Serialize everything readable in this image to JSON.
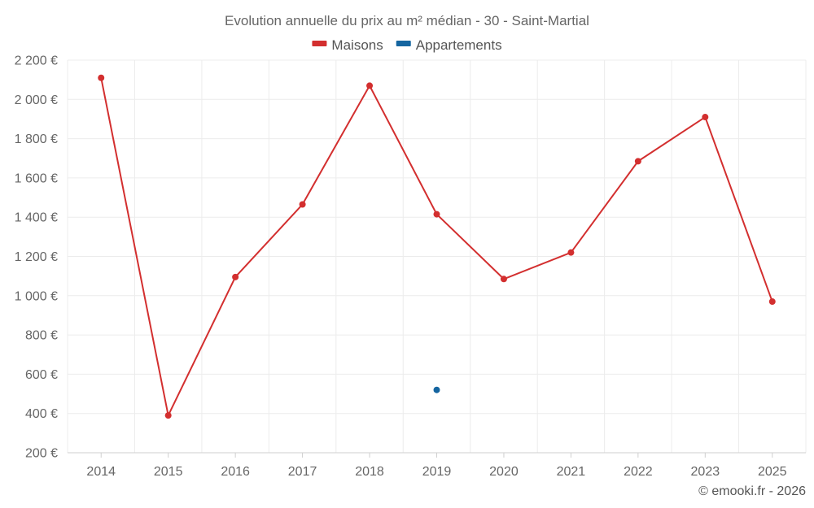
{
  "chart_data": {
    "type": "line",
    "title": "Evolution annuelle du prix au m² médian - 30 - Saint-Martial",
    "categories": [
      "2014",
      "2015",
      "2016",
      "2017",
      "2018",
      "2019",
      "2020",
      "2021",
      "2022",
      "2023",
      "2025"
    ],
    "series": [
      {
        "name": "Maisons",
        "color": "#d32f2f",
        "values": [
          2110,
          390,
          1095,
          1465,
          2070,
          1415,
          1085,
          1220,
          1685,
          1910,
          970
        ]
      },
      {
        "name": "Appartements",
        "color": "#1565a0",
        "values": [
          null,
          null,
          null,
          null,
          null,
          520,
          null,
          null,
          null,
          null,
          null
        ]
      }
    ],
    "ylim": [
      200,
      2200
    ],
    "yticks": [
      200,
      400,
      600,
      800,
      1000,
      1200,
      1400,
      1600,
      1800,
      2000,
      2200
    ],
    "ytick_labels": [
      "200 €",
      "400 €",
      "600 €",
      "800 €",
      "1 000 €",
      "1 200 €",
      "1 400 €",
      "1 600 €",
      "1 800 €",
      "2 000 €",
      "2 200 €"
    ],
    "xlabel": "",
    "ylabel": "",
    "grid": true,
    "legend_position": "top-center"
  },
  "credit": "© emooki.fr - 2026"
}
